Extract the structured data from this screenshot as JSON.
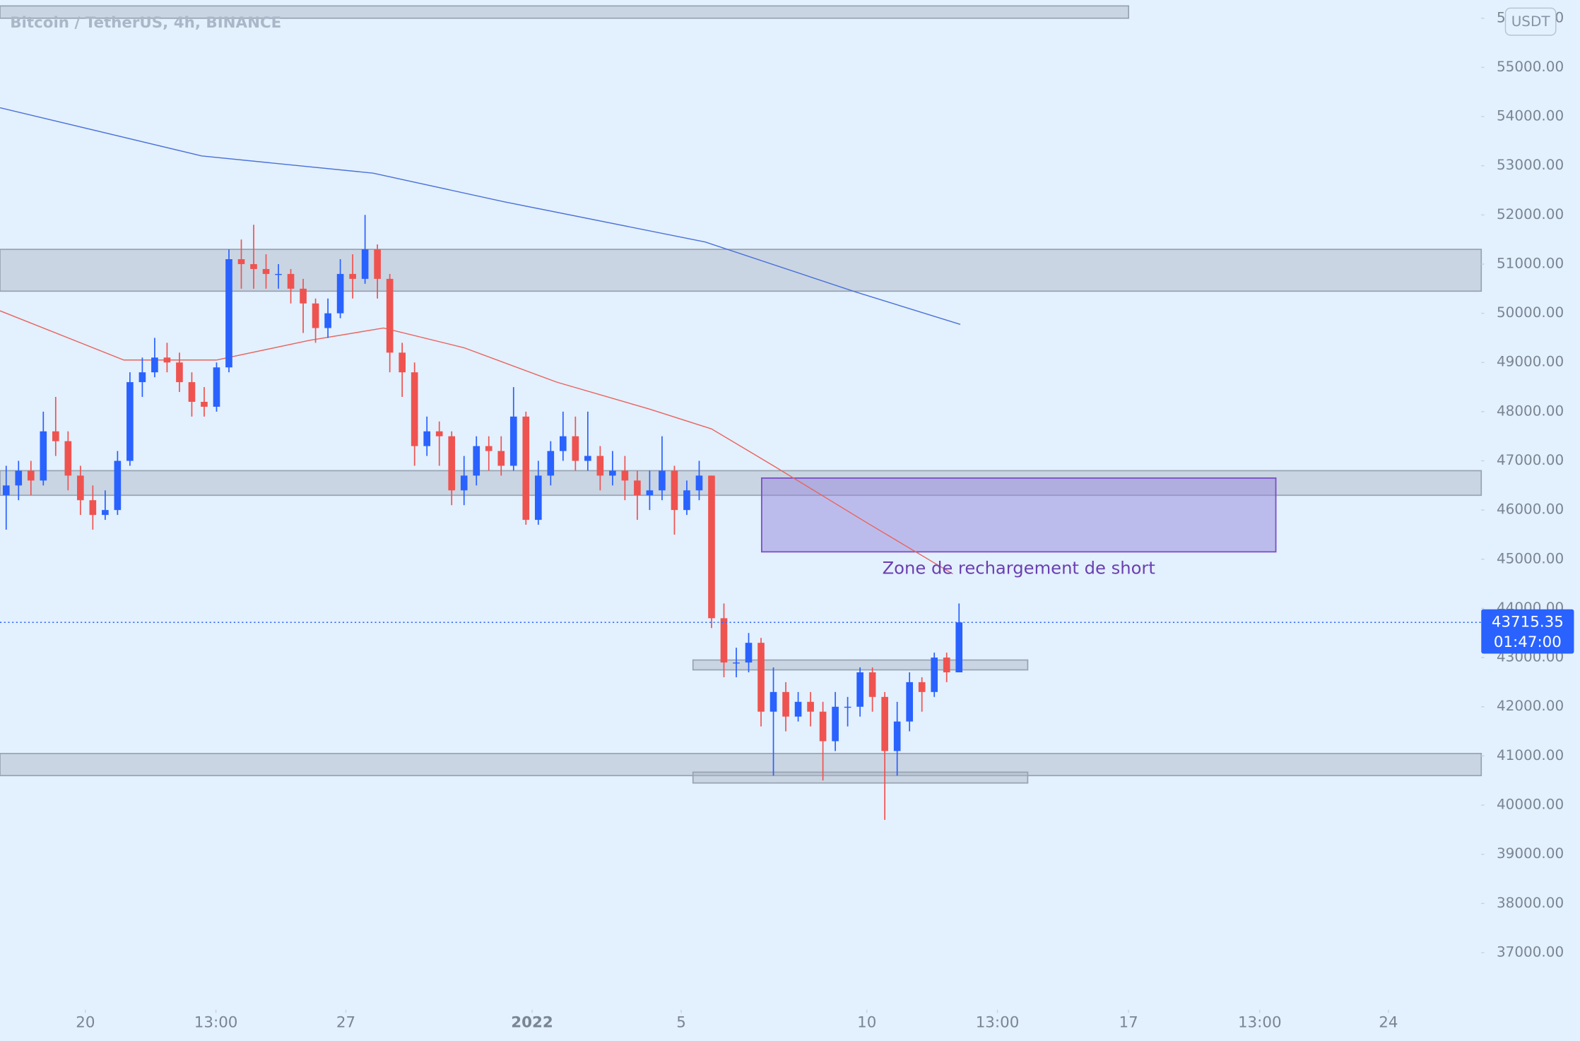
{
  "chart_data": {
    "type": "candlestick",
    "title": "Bitcoin / TetherUS, 4h, BINANCE",
    "currency": "USDT",
    "up_color": "#2962ff",
    "down_color": "#ef5350",
    "xlim": [
      0,
      239.4
    ],
    "ylim": [
      35900,
      56370
    ],
    "xticks": [
      {
        "value": 13.8,
        "label": "20"
      },
      {
        "value": 34.9,
        "label": "13:00"
      },
      {
        "value": 55.9,
        "label": "27"
      },
      {
        "value": 86,
        "label": "2022"
      },
      {
        "value": 110.1,
        "label": "5"
      },
      {
        "value": 140.1,
        "label": "10"
      },
      {
        "value": 161.2,
        "label": "13:00"
      },
      {
        "value": 182.4,
        "label": "17"
      },
      {
        "value": 203.6,
        "label": "13:00"
      },
      {
        "value": 224.4,
        "label": "24"
      }
    ],
    "yticks": [
      {
        "value": 37000,
        "label": "37000.00"
      },
      {
        "value": 38000,
        "label": "38000.00"
      },
      {
        "value": 39000,
        "label": "39000.00"
      },
      {
        "value": 40000,
        "label": "40000.00"
      },
      {
        "value": 41000,
        "label": "41000.00"
      },
      {
        "value": 42000,
        "label": "42000.00"
      },
      {
        "value": 43000,
        "label": "43000.00"
      },
      {
        "value": 44000,
        "label": "44000.00"
      },
      {
        "value": 45000,
        "label": "45000.00"
      },
      {
        "value": 46000,
        "label": "46000.00"
      },
      {
        "value": 47000,
        "label": "47000.00"
      },
      {
        "value": 48000,
        "label": "48000.00"
      },
      {
        "value": 49000,
        "label": "49000.00"
      },
      {
        "value": 50000,
        "label": "50000.00"
      },
      {
        "value": 51000,
        "label": "51000.00"
      },
      {
        "value": 52000,
        "label": "52000.00"
      },
      {
        "value": 53000,
        "label": "53000.00"
      },
      {
        "value": 54000,
        "label": "54000.00"
      },
      {
        "value": 55000,
        "label": "55000.00"
      },
      {
        "value": 56000,
        "label": "56000.00"
      }
    ],
    "x": [
      1,
      3,
      5,
      7,
      9,
      11,
      13,
      15,
      17,
      19,
      21,
      23,
      25,
      27,
      29,
      31,
      33,
      35,
      37,
      39,
      41,
      43,
      45,
      47,
      49,
      51,
      53,
      55,
      57,
      59,
      61,
      63,
      65,
      67,
      69,
      71,
      73,
      75,
      77,
      79,
      81,
      83,
      85,
      87,
      89,
      91,
      93,
      95,
      97,
      99,
      101,
      103,
      105,
      107,
      109,
      111,
      113,
      115,
      117,
      119,
      121,
      123,
      125,
      127,
      129,
      131,
      133,
      135,
      137,
      139,
      141,
      143,
      145,
      147,
      149,
      151,
      153,
      155
    ],
    "open": [
      46300,
      46500,
      46800,
      46600,
      47600,
      47400,
      46700,
      46200,
      45900,
      46000,
      47000,
      48600,
      48800,
      49100,
      49000,
      48600,
      48200,
      48100,
      48900,
      51100,
      51000,
      50900,
      50800,
      50800,
      50500,
      50200,
      49700,
      50000,
      50800,
      50700,
      51300,
      50700,
      49200,
      48800,
      47300,
      47600,
      47500,
      46400,
      46700,
      47300,
      47200,
      46900,
      47900,
      45800,
      46700,
      47200,
      47500,
      47000,
      47100,
      46700,
      46800,
      46600,
      46300,
      46400,
      46800,
      46000,
      46400,
      46700,
      43800,
      42900,
      42900,
      43300,
      41900,
      42300,
      41800,
      42100,
      41900,
      41300,
      42000,
      42000,
      42700,
      42200,
      41100,
      41700,
      42500,
      42300,
      43000,
      42700
    ],
    "high": [
      46900,
      47000,
      47000,
      48000,
      48300,
      47600,
      46900,
      46500,
      46400,
      47200,
      48800,
      49100,
      49500,
      49400,
      49200,
      48800,
      48500,
      49000,
      51300,
      51500,
      51800,
      51200,
      51000,
      50900,
      50700,
      50300,
      50300,
      51100,
      51200,
      52000,
      51400,
      50800,
      49400,
      49000,
      47900,
      47800,
      47600,
      47100,
      47500,
      47500,
      47500,
      48500,
      48000,
      47000,
      47400,
      48000,
      47900,
      48000,
      47300,
      47200,
      47100,
      46800,
      46800,
      47500,
      46900,
      46600,
      47000,
      46700,
      44100,
      43200,
      43500,
      43400,
      42800,
      42500,
      42300,
      42300,
      42100,
      42300,
      42200,
      42800,
      42800,
      42300,
      42100,
      42700,
      42600,
      43100,
      43100,
      44100
    ],
    "low": [
      45600,
      46200,
      46300,
      46500,
      47100,
      46400,
      45900,
      45600,
      45800,
      45900,
      46900,
      48300,
      48700,
      48800,
      48400,
      47900,
      47900,
      48000,
      48800,
      50500,
      50500,
      50500,
      50500,
      50200,
      49600,
      49400,
      49500,
      49900,
      50300,
      50600,
      50300,
      48800,
      48300,
      46900,
      47100,
      46900,
      46100,
      46100,
      46500,
      46800,
      46700,
      46800,
      45700,
      45700,
      46500,
      47000,
      46800,
      46800,
      46400,
      46500,
      46200,
      45800,
      46000,
      46200,
      45500,
      45900,
      46200,
      43600,
      42600,
      42600,
      42700,
      41600,
      40600,
      41500,
      41700,
      41600,
      40500,
      41100,
      41600,
      41800,
      41900,
      39700,
      40600,
      41500,
      41900,
      42200,
      42500,
      42700
    ],
    "close": [
      46500,
      46800,
      46600,
      47600,
      47400,
      46700,
      46200,
      45900,
      46000,
      47000,
      48600,
      48800,
      49100,
      49000,
      48600,
      48200,
      48100,
      48900,
      51100,
      51000,
      50900,
      50800,
      50800,
      50500,
      50200,
      49700,
      50000,
      50800,
      50700,
      51300,
      50700,
      49200,
      48800,
      47300,
      47600,
      47500,
      46400,
      46700,
      47300,
      47200,
      46900,
      47900,
      45800,
      46700,
      47200,
      47500,
      47000,
      47100,
      46700,
      46800,
      46600,
      46300,
      46400,
      46800,
      46000,
      46400,
      46700,
      43800,
      42900,
      42900,
      43300,
      41900,
      42300,
      41800,
      42100,
      41900,
      41300,
      42000,
      42000,
      42700,
      42200,
      41100,
      41700,
      42500,
      42300,
      43000,
      42700,
      43715.35
    ],
    "lines": [
      {
        "color": "#e8645e",
        "x": [
          0,
          20,
          35,
          50,
          62,
          75,
          90,
          105,
          115,
          125,
          140,
          154
        ],
        "values": [
          50050,
          49050,
          49050,
          49450,
          49700,
          49300,
          48600,
          48050,
          47650,
          46900,
          45750,
          44700
        ]
      },
      {
        "color": "#4a72d8",
        "x": [
          0,
          32.6,
          60.3,
          81.4,
          114,
          138.4,
          155.2
        ],
        "values": [
          54180,
          53200,
          52850,
          52270,
          51450,
          50430,
          49775
        ]
      }
    ],
    "zones": [
      {
        "x": [
          0,
          182.4
        ],
        "y": [
          56000,
          56250
        ]
      },
      {
        "x": [
          0,
          239.4
        ],
        "y": [
          50450,
          51300
        ]
      },
      {
        "x": [
          0,
          239.4
        ],
        "y": [
          46300,
          46800
        ]
      },
      {
        "x": [
          112,
          166.1
        ],
        "y": [
          42750,
          42950
        ]
      },
      {
        "x": [
          0,
          239.4
        ],
        "y": [
          40600,
          41050
        ]
      },
      {
        "x": [
          112,
          166.1
        ],
        "y": [
          40450,
          40670
        ]
      }
    ],
    "annotation": {
      "text": "Zone de rechargement de short",
      "x": [
        123.1,
        206.2
      ],
      "y": [
        45150,
        46650
      ],
      "color": "#7b52c7"
    },
    "last_price": {
      "value": 43715.35,
      "countdown": "01:47:00",
      "color": "#2962ff"
    }
  }
}
